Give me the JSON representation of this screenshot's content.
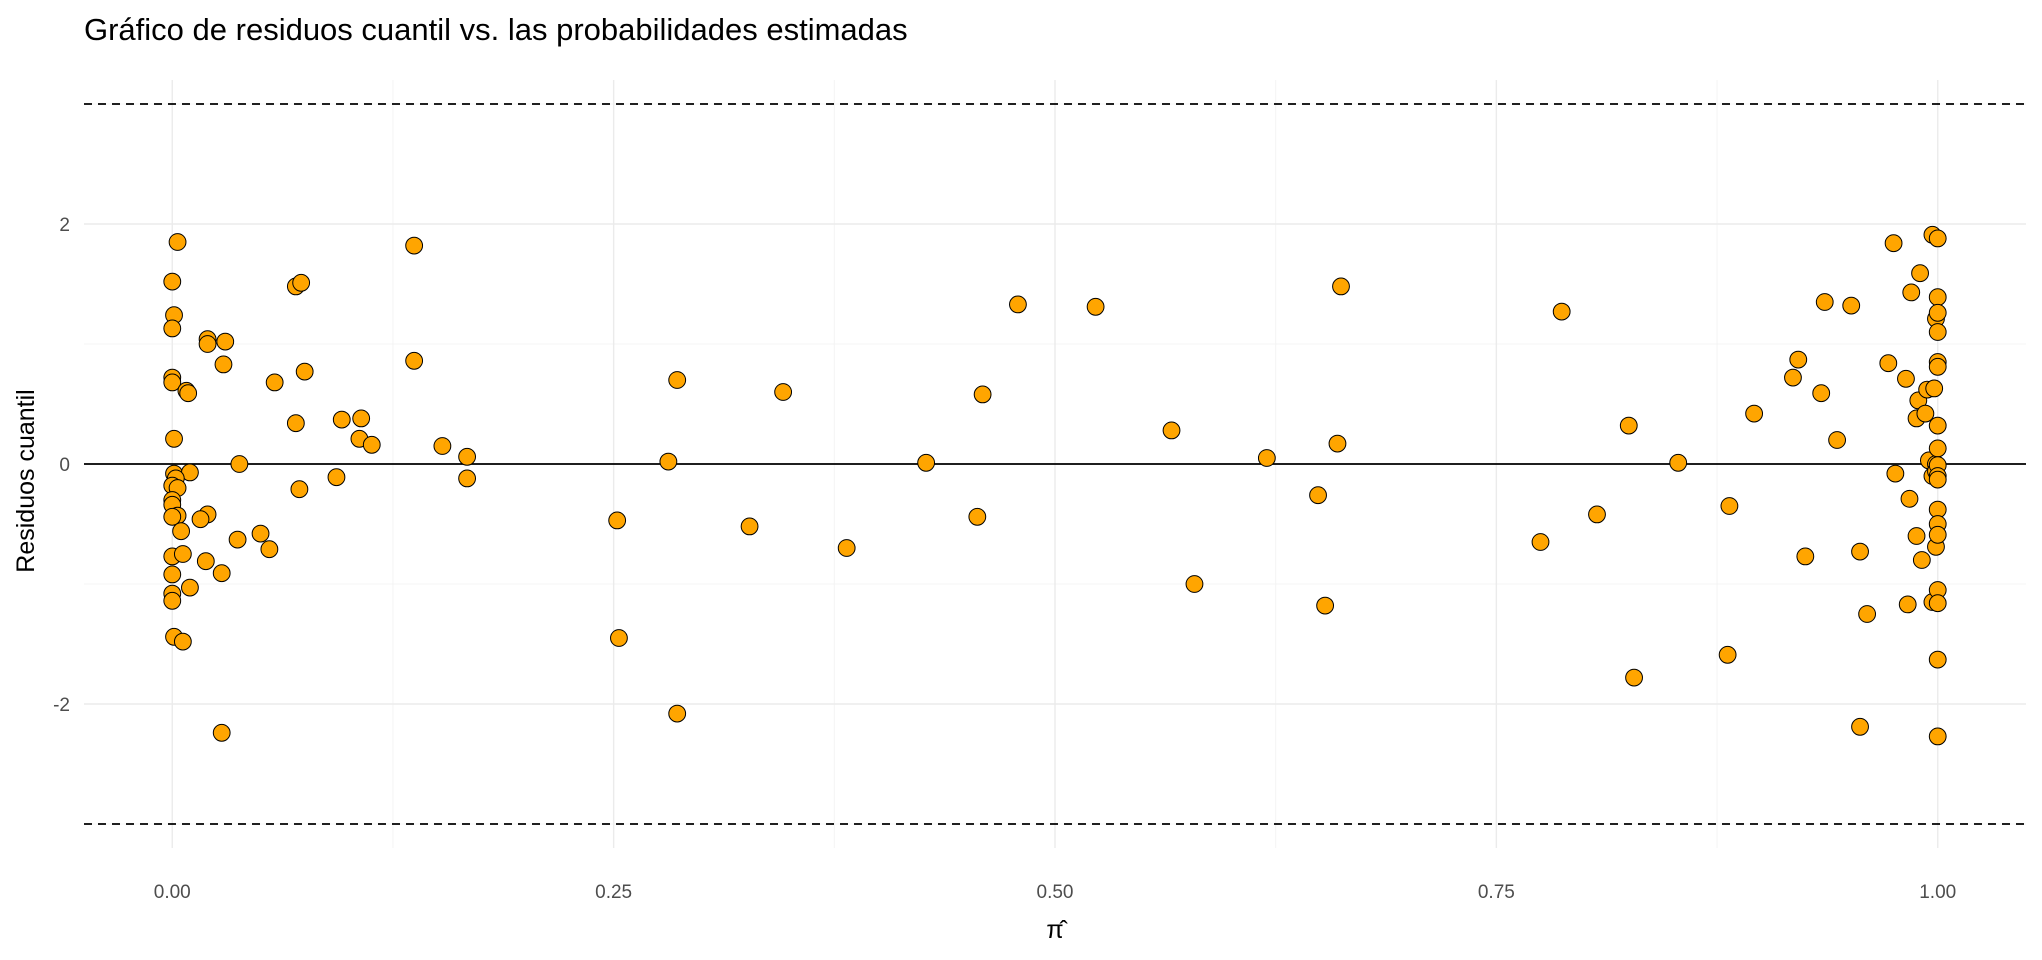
{
  "chart_data": {
    "type": "scatter",
    "title": "Gráfico de residuos cuantil vs. las probabilidades estimadas",
    "xlabel": "π̂",
    "ylabel": "Residuos cuantil",
    "xlim": [
      -0.05,
      1.05
    ],
    "ylim": [
      -3.2,
      3.2
    ],
    "x_ticks": [
      0.0,
      0.25,
      0.5,
      0.75,
      1.0
    ],
    "x_tick_labels": [
      "0.00",
      "0.25",
      "0.50",
      "0.75",
      "1.00"
    ],
    "y_ticks": [
      -2,
      0,
      2
    ],
    "y_tick_labels": [
      "-2",
      "0",
      "2"
    ],
    "grid": true,
    "reference_lines": [
      {
        "y": 0,
        "style": "solid"
      },
      {
        "y": 3,
        "style": "dashed"
      },
      {
        "y": -3,
        "style": "dashed"
      }
    ],
    "point_color": "#FFA500",
    "point_edge_color": "#000000",
    "points": [
      {
        "x": 0.003,
        "y": 1.85
      },
      {
        "x": 0.0,
        "y": 1.52
      },
      {
        "x": 0.001,
        "y": 1.24
      },
      {
        "x": 0.0,
        "y": 1.13
      },
      {
        "x": 0.0,
        "y": 0.72
      },
      {
        "x": 0.0,
        "y": 0.68
      },
      {
        "x": 0.008,
        "y": 0.61
      },
      {
        "x": 0.009,
        "y": 0.59
      },
      {
        "x": 0.001,
        "y": 0.21
      },
      {
        "x": 0.001,
        "y": -0.08
      },
      {
        "x": 0.01,
        "y": -0.07
      },
      {
        "x": 0.002,
        "y": -0.12
      },
      {
        "x": 0.0,
        "y": -0.18
      },
      {
        "x": 0.003,
        "y": -0.2
      },
      {
        "x": 0.0,
        "y": -0.3
      },
      {
        "x": 0.0,
        "y": -0.34
      },
      {
        "x": 0.003,
        "y": -0.43
      },
      {
        "x": 0.0,
        "y": -0.44
      },
      {
        "x": 0.005,
        "y": -0.56
      },
      {
        "x": 0.0,
        "y": -0.77
      },
      {
        "x": 0.006,
        "y": -0.75
      },
      {
        "x": 0.0,
        "y": -0.92
      },
      {
        "x": 0.01,
        "y": -1.03
      },
      {
        "x": 0.0,
        "y": -1.08
      },
      {
        "x": 0.0,
        "y": -1.14
      },
      {
        "x": 0.001,
        "y": -1.44
      },
      {
        "x": 0.006,
        "y": -1.48
      },
      {
        "x": 0.02,
        "y": 1.04
      },
      {
        "x": 0.02,
        "y": 1.0
      },
      {
        "x": 0.03,
        "y": 1.02
      },
      {
        "x": 0.029,
        "y": 0.83
      },
      {
        "x": 0.02,
        "y": -0.42
      },
      {
        "x": 0.016,
        "y": -0.46
      },
      {
        "x": 0.019,
        "y": -0.81
      },
      {
        "x": 0.028,
        "y": -0.91
      },
      {
        "x": 0.028,
        "y": -2.24
      },
      {
        "x": 0.038,
        "y": 0.0
      },
      {
        "x": 0.037,
        "y": -0.63
      },
      {
        "x": 0.05,
        "y": -0.58
      },
      {
        "x": 0.055,
        "y": -0.71
      },
      {
        "x": 0.058,
        "y": 0.68
      },
      {
        "x": 0.07,
        "y": 1.48
      },
      {
        "x": 0.073,
        "y": 1.51
      },
      {
        "x": 0.075,
        "y": 0.77
      },
      {
        "x": 0.07,
        "y": 0.34
      },
      {
        "x": 0.072,
        "y": -0.21
      },
      {
        "x": 0.093,
        "y": -0.11
      },
      {
        "x": 0.096,
        "y": 0.37
      },
      {
        "x": 0.107,
        "y": 0.38
      },
      {
        "x": 0.106,
        "y": 0.21
      },
      {
        "x": 0.113,
        "y": 0.16
      },
      {
        "x": 0.137,
        "y": 1.82
      },
      {
        "x": 0.137,
        "y": 0.86
      },
      {
        "x": 0.153,
        "y": 0.15
      },
      {
        "x": 0.167,
        "y": 0.06
      },
      {
        "x": 0.167,
        "y": -0.12
      },
      {
        "x": 0.252,
        "y": -0.47
      },
      {
        "x": 0.253,
        "y": -1.45
      },
      {
        "x": 0.281,
        "y": 0.02
      },
      {
        "x": 0.286,
        "y": 0.7
      },
      {
        "x": 0.286,
        "y": -2.08
      },
      {
        "x": 0.327,
        "y": -0.52
      },
      {
        "x": 0.346,
        "y": 0.6
      },
      {
        "x": 0.382,
        "y": -0.7
      },
      {
        "x": 0.427,
        "y": 0.01
      },
      {
        "x": 0.456,
        "y": -0.44
      },
      {
        "x": 0.459,
        "y": 0.58
      },
      {
        "x": 0.479,
        "y": 1.33
      },
      {
        "x": 0.523,
        "y": 1.31
      },
      {
        "x": 0.566,
        "y": 0.28
      },
      {
        "x": 0.579,
        "y": -1.0
      },
      {
        "x": 0.62,
        "y": 0.05
      },
      {
        "x": 0.649,
        "y": -0.26
      },
      {
        "x": 0.653,
        "y": -1.18
      },
      {
        "x": 0.66,
        "y": 0.17
      },
      {
        "x": 0.662,
        "y": 1.48
      },
      {
        "x": 0.775,
        "y": -0.65
      },
      {
        "x": 0.787,
        "y": 1.27
      },
      {
        "x": 0.807,
        "y": -0.42
      },
      {
        "x": 0.825,
        "y": 0.32
      },
      {
        "x": 0.828,
        "y": -1.78
      },
      {
        "x": 0.853,
        "y": 0.01
      },
      {
        "x": 0.882,
        "y": -0.35
      },
      {
        "x": 0.881,
        "y": -1.59
      },
      {
        "x": 0.896,
        "y": 0.42
      },
      {
        "x": 0.918,
        "y": 0.72
      },
      {
        "x": 0.921,
        "y": 0.87
      },
      {
        "x": 0.925,
        "y": -0.77
      },
      {
        "x": 0.934,
        "y": 0.59
      },
      {
        "x": 0.936,
        "y": 1.35
      },
      {
        "x": 0.943,
        "y": 0.2
      },
      {
        "x": 0.951,
        "y": 1.32
      },
      {
        "x": 0.956,
        "y": -0.73
      },
      {
        "x": 0.956,
        "y": -2.19
      },
      {
        "x": 0.96,
        "y": -1.25
      },
      {
        "x": 0.972,
        "y": 0.84
      },
      {
        "x": 0.975,
        "y": 1.84
      },
      {
        "x": 0.976,
        "y": -0.08
      },
      {
        "x": 0.982,
        "y": 0.71
      },
      {
        "x": 0.984,
        "y": -0.29
      },
      {
        "x": 0.983,
        "y": -1.17
      },
      {
        "x": 0.985,
        "y": 1.43
      },
      {
        "x": 0.988,
        "y": 0.38
      },
      {
        "x": 0.988,
        "y": -0.6
      },
      {
        "x": 0.989,
        "y": 0.53
      },
      {
        "x": 0.99,
        "y": 1.59
      },
      {
        "x": 0.991,
        "y": -0.8
      },
      {
        "x": 0.993,
        "y": 0.42
      },
      {
        "x": 0.994,
        "y": 0.62
      },
      {
        "x": 0.995,
        "y": 0.03
      },
      {
        "x": 0.997,
        "y": 1.91
      },
      {
        "x": 0.997,
        "y": -0.1
      },
      {
        "x": 0.997,
        "y": -1.15
      },
      {
        "x": 0.998,
        "y": 0.63
      },
      {
        "x": 0.999,
        "y": 1.21
      },
      {
        "x": 0.999,
        "y": 0.0
      },
      {
        "x": 0.999,
        "y": -0.06
      },
      {
        "x": 0.999,
        "y": -0.69
      },
      {
        "x": 1.0,
        "y": 1.88
      },
      {
        "x": 1.0,
        "y": 1.39
      },
      {
        "x": 1.0,
        "y": 1.26
      },
      {
        "x": 1.0,
        "y": 1.1
      },
      {
        "x": 1.0,
        "y": 0.85
      },
      {
        "x": 1.0,
        "y": 0.81
      },
      {
        "x": 1.0,
        "y": 0.32
      },
      {
        "x": 1.0,
        "y": 0.13
      },
      {
        "x": 1.0,
        "y": -0.01
      },
      {
        "x": 1.0,
        "y": -0.1
      },
      {
        "x": 1.0,
        "y": -0.13
      },
      {
        "x": 1.0,
        "y": -0.38
      },
      {
        "x": 1.0,
        "y": -0.5
      },
      {
        "x": 1.0,
        "y": -0.59
      },
      {
        "x": 1.0,
        "y": -1.05
      },
      {
        "x": 1.0,
        "y": -1.16
      },
      {
        "x": 1.0,
        "y": -1.63
      },
      {
        "x": 1.0,
        "y": -2.27
      }
    ]
  }
}
